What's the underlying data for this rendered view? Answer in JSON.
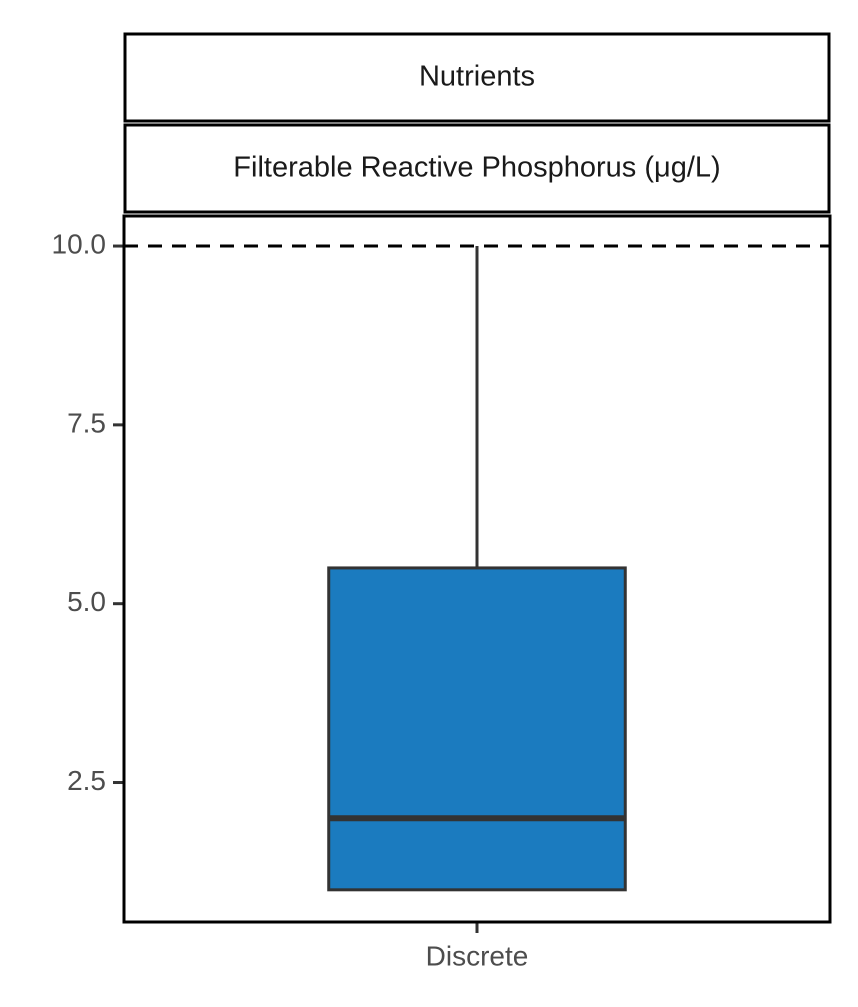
{
  "chart_data": {
    "type": "box",
    "strips": [
      "Nutrients",
      "Filterable Reactive Phosphorus (μg/L)"
    ],
    "categories": [
      "Discrete"
    ],
    "boxes": [
      {
        "min": 1.0,
        "q1": 1.0,
        "median": 2.0,
        "q3": 5.5,
        "max": 10.0
      }
    ],
    "color": "#1b7bbf",
    "hline": 10.0,
    "hline_style": "dashed",
    "ylim": [
      0.55,
      10.42
    ],
    "yticks": [
      {
        "value": 2.5,
        "label": "2.5"
      },
      {
        "value": 5,
        "label": "5.0"
      },
      7.5,
      {
        "value": 10,
        "label": "10.0"
      }
    ]
  }
}
